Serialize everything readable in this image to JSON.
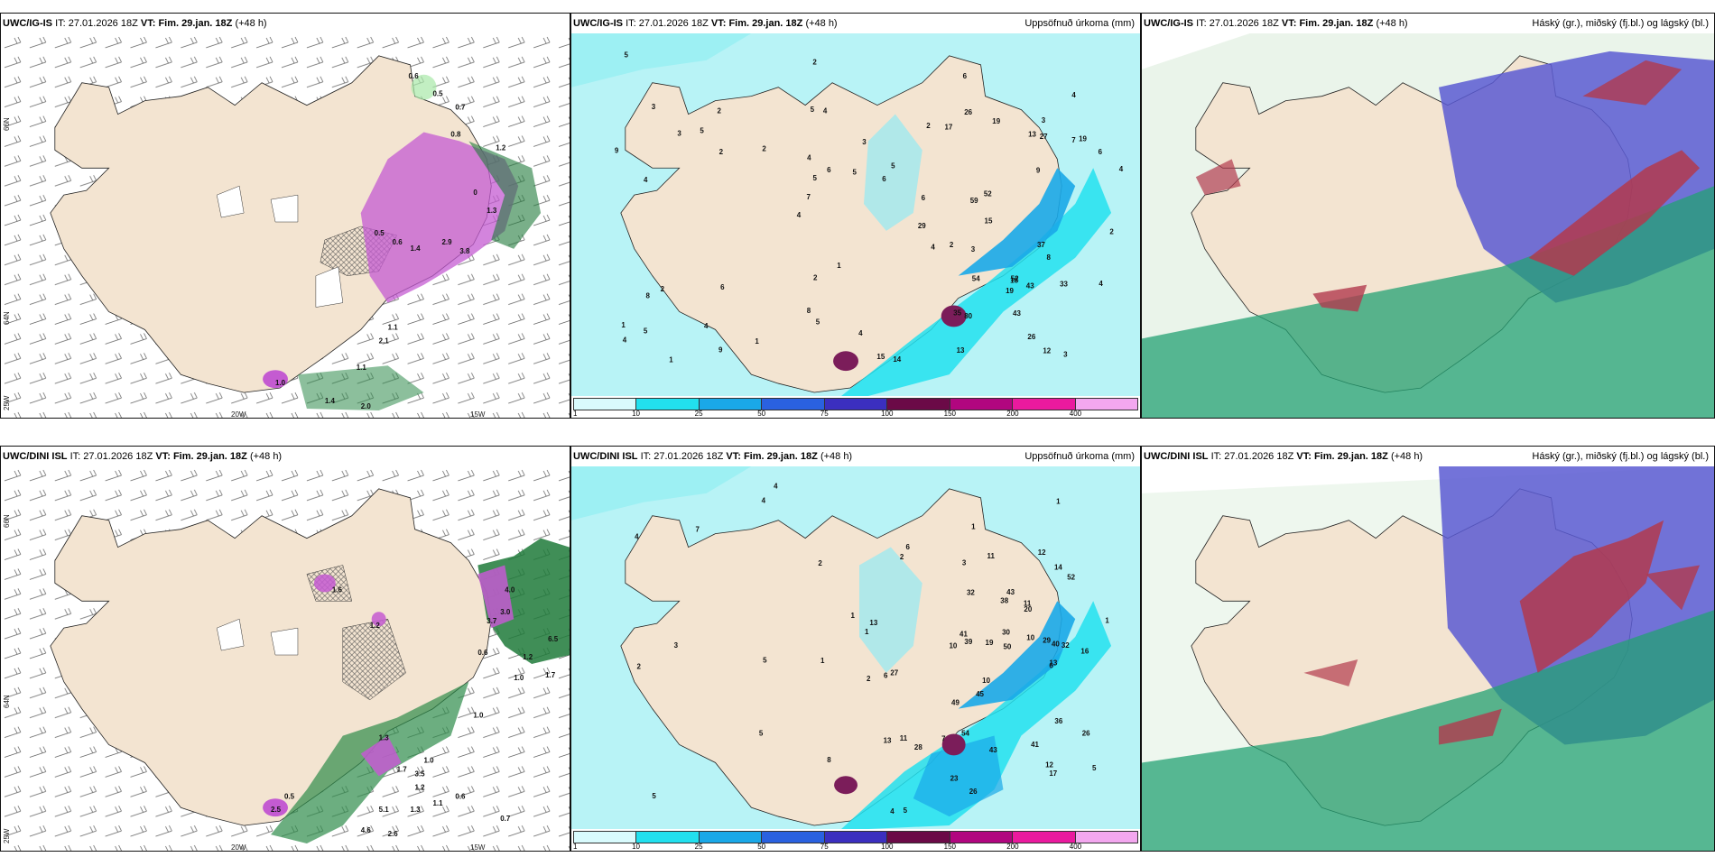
{
  "colors": {
    "land": "#f3e4d1",
    "sea": "#ffffff",
    "precip_light": "#b8f3f6",
    "precip_cyan": "#22e0ee",
    "precip_blue": "#1aa8e8",
    "precip_dark": "#7b1d5a",
    "snow_magenta": "#c45bd1",
    "snow_green": "#1f7a3a",
    "cloud_high": "#5a5ad2",
    "cloud_mid": "#b23a4d",
    "cloud_low": "#23a173"
  },
  "rows": [
    {
      "model": "UWC/IG-IS",
      "init_label": "IT:",
      "init": "27.01.2026 18Z",
      "valid_label": "VT:",
      "valid": "Fim. 29.jan. 18Z",
      "lead": "(+48 h)",
      "precip_title": "Uppsöfnuð úrkoma (mm)",
      "cloud_title": "Háský (gr.), miðský (fj.bl.) og lágský (bl.)",
      "snow_numbers": [
        "0.6",
        "0.5",
        "0.7",
        "0.8",
        "1.2",
        "0.5",
        "0.6",
        "1.4",
        "2.9",
        "3.8",
        "1.1",
        "2.1",
        "1.1",
        "1.4",
        "2.0",
        "1.0",
        "1.3",
        "0"
      ],
      "precip_numbers": [
        "3",
        "4",
        "4",
        "4",
        "2",
        "1",
        "5",
        "3",
        "2",
        "2",
        "4",
        "4",
        "4",
        "5",
        "3",
        "3",
        "2",
        "4",
        "4",
        "7",
        "7",
        "8",
        "5",
        "2",
        "6",
        "6",
        "12",
        "33",
        "37",
        "43",
        "52",
        "59",
        "19",
        "9",
        "6",
        "6",
        "15",
        "5",
        "15",
        "8",
        "3",
        "19",
        "18",
        "43",
        "54",
        "80",
        "35",
        "52",
        "27",
        "26",
        "29",
        "9",
        "5",
        "13",
        "14",
        "19",
        "17",
        "6",
        "4",
        "2",
        "1",
        "2",
        "2",
        "1",
        "5",
        "3",
        "2",
        "4",
        "4",
        "5",
        "5",
        "6",
        "8",
        "13",
        "9",
        "1",
        "26"
      ]
    },
    {
      "model": "UWC/DINI ISL",
      "init_label": "IT:",
      "init": "27.01.2026 18Z",
      "valid_label": "VT:",
      "valid": "Fim. 29.jan. 18Z",
      "lead": "(+48 h)",
      "precip_title": "Uppsöfnuð úrkoma (mm)",
      "cloud_title": "Háský (gr.), miðský (fj.bl.) og lágský (bl.)",
      "snow_numbers": [
        "1.6",
        "1.2",
        "4.0",
        "3.0",
        "3.7",
        "0.6",
        "6.5",
        "1.2",
        "1.7",
        "1.0",
        "1.3",
        "1.0",
        "1.0",
        "1.7",
        "3.5",
        "0.6",
        "1.2",
        "5.1",
        "1.3",
        "1.1",
        "4.6",
        "2.6",
        "0.7",
        "0.5",
        "2.5"
      ],
      "precip_numbers": [
        "4",
        "1",
        "1",
        "1",
        "6",
        "3",
        "4",
        "3",
        "2",
        "2",
        "1",
        "5",
        "4",
        "5",
        "4",
        "5",
        "8",
        "12",
        "10",
        "45",
        "39",
        "27",
        "16",
        "32",
        "49",
        "41",
        "50",
        "40",
        "36",
        "13",
        "12",
        "6",
        "11",
        "10",
        "7",
        "26",
        "29",
        "23",
        "52",
        "43",
        "54",
        "43",
        "41",
        "32",
        "26",
        "20",
        "17",
        "11",
        "13",
        "10",
        "38",
        "13",
        "19",
        "14",
        "11",
        "28",
        "30",
        "1",
        "1",
        "2",
        "5",
        "6",
        "7",
        "5",
        "2"
      ]
    }
  ],
  "axis": {
    "lat_66": "66N",
    "lat_64": "64N",
    "lon_20": "20W",
    "lon_15": "15W",
    "lon_25": "25W"
  },
  "colorbar": {
    "ticks": [
      "1",
      "10",
      "25",
      "50",
      "75",
      "100",
      "150",
      "200",
      "400"
    ],
    "colors": [
      "#d9fbfd",
      "#22e0ee",
      "#1aa8e8",
      "#2a61e0",
      "#3b2fbf",
      "#6b0a47",
      "#b1067f",
      "#ea1a9e",
      "#f3a7ef"
    ]
  }
}
